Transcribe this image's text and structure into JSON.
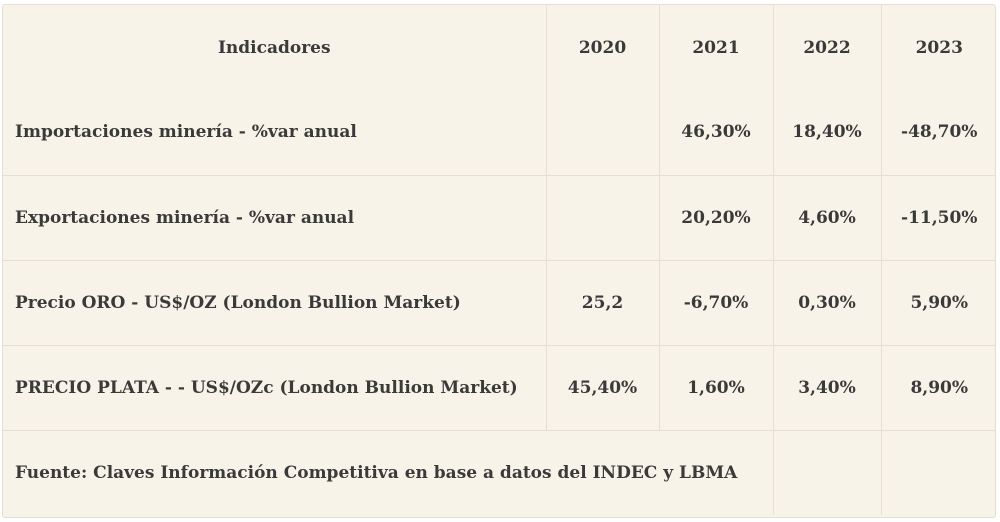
{
  "table": {
    "headers": [
      "Indicadores",
      "2020",
      "2021",
      "2022",
      "2023"
    ],
    "rows": [
      {
        "label": "Importaciones minería - %var anual",
        "values": [
          "",
          "46,30%",
          "18,40%",
          "-48,70%"
        ]
      },
      {
        "label": "Exportaciones minería - %var anual",
        "values": [
          "",
          "20,20%",
          "4,60%",
          "-11,50%"
        ]
      },
      {
        "label": "Precio ORO - US$/OZ (London Bullion Market)",
        "values": [
          "25,2",
          "-6,70%",
          "0,30%",
          "5,90%"
        ]
      },
      {
        "label": "PRECIO PLATA - - US$/OZc (London Bullion Market)",
        "values": [
          "45,40%",
          "1,60%",
          "3,40%",
          "8,90%"
        ]
      }
    ],
    "source": "Fuente: Claves Información Competitiva en base a datos del INDEC y LBMA"
  },
  "colors": {
    "background": "#f8f3e8",
    "border": "#e6dfcf",
    "text": "#3a3a3a"
  }
}
